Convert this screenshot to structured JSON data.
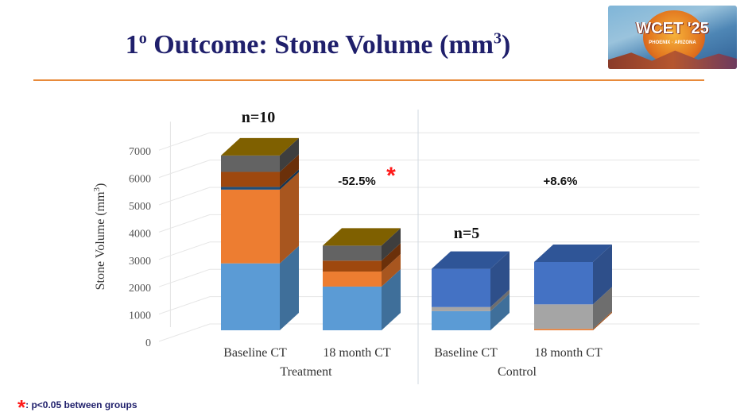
{
  "slide": {
    "title": "1º Outcome: Stone Volume (mm³)",
    "title_main": "1",
    "title_sup": "o",
    "title_mid": " Outcome: Stone Volume (mm",
    "title_unit_sup": "3",
    "title_end": ")",
    "logo_text": "WCET '25",
    "logo_subtext": "PHOENIX · ARIZONA",
    "accent_rule_color": "#e88a3a",
    "footnote_marker": "*",
    "footnote_text": ": p<0.05 between groups"
  },
  "chart_data": {
    "type": "bar",
    "stacked": true,
    "three_d": true,
    "ylabel": "Stone Volume (mm3)",
    "ylim": [
      0,
      7000
    ],
    "yticks": [
      0,
      1000,
      2000,
      3000,
      4000,
      5000,
      6000,
      7000
    ],
    "grid": true,
    "categories": [
      "Baseline CT",
      "18 month CT",
      "Baseline CT",
      "18 month CT"
    ],
    "groups": [
      {
        "label": "Treatment",
        "categories": [
          0,
          1
        ]
      },
      {
        "label": "Control",
        "categories": [
          2,
          3
        ]
      }
    ],
    "series": [
      {
        "color": "#5b9bd5",
        "side": "#3f6f9a",
        "values": [
          2450,
          1600,
          700,
          0
        ]
      },
      {
        "color": "#ed7d31",
        "side": "#a8561f",
        "values": [
          2700,
          550,
          0,
          50
        ]
      },
      {
        "color": "#a5a5a5",
        "side": "#6e6e6e",
        "values": [
          0,
          0,
          150,
          900
        ]
      },
      {
        "color": "#4472c4",
        "side": "#2e4f8a",
        "values": [
          0,
          0,
          1400,
          1550
        ]
      },
      {
        "color": "#1f4e79",
        "side": "#153552",
        "values": [
          100,
          0,
          0,
          0
        ]
      },
      {
        "color": "#9e480e",
        "side": "#6b300a",
        "values": [
          550,
          400,
          0,
          0
        ]
      },
      {
        "color": "#636363",
        "side": "#3e3e3e",
        "values": [
          600,
          550,
          0,
          0
        ]
      }
    ],
    "top_cap_colors": [
      "#7f6000",
      "#7f6000",
      "#2f5597",
      "#2f5597"
    ],
    "annotations": [
      {
        "text": "n=10",
        "category": 0
      },
      {
        "text": "-52.5%",
        "category": 1,
        "significant": true
      },
      {
        "text": "n=5",
        "category": 2
      },
      {
        "text": "+8.6%",
        "category": 3
      }
    ],
    "significance_marker": "*",
    "significance_color": "#ff1a1a"
  }
}
